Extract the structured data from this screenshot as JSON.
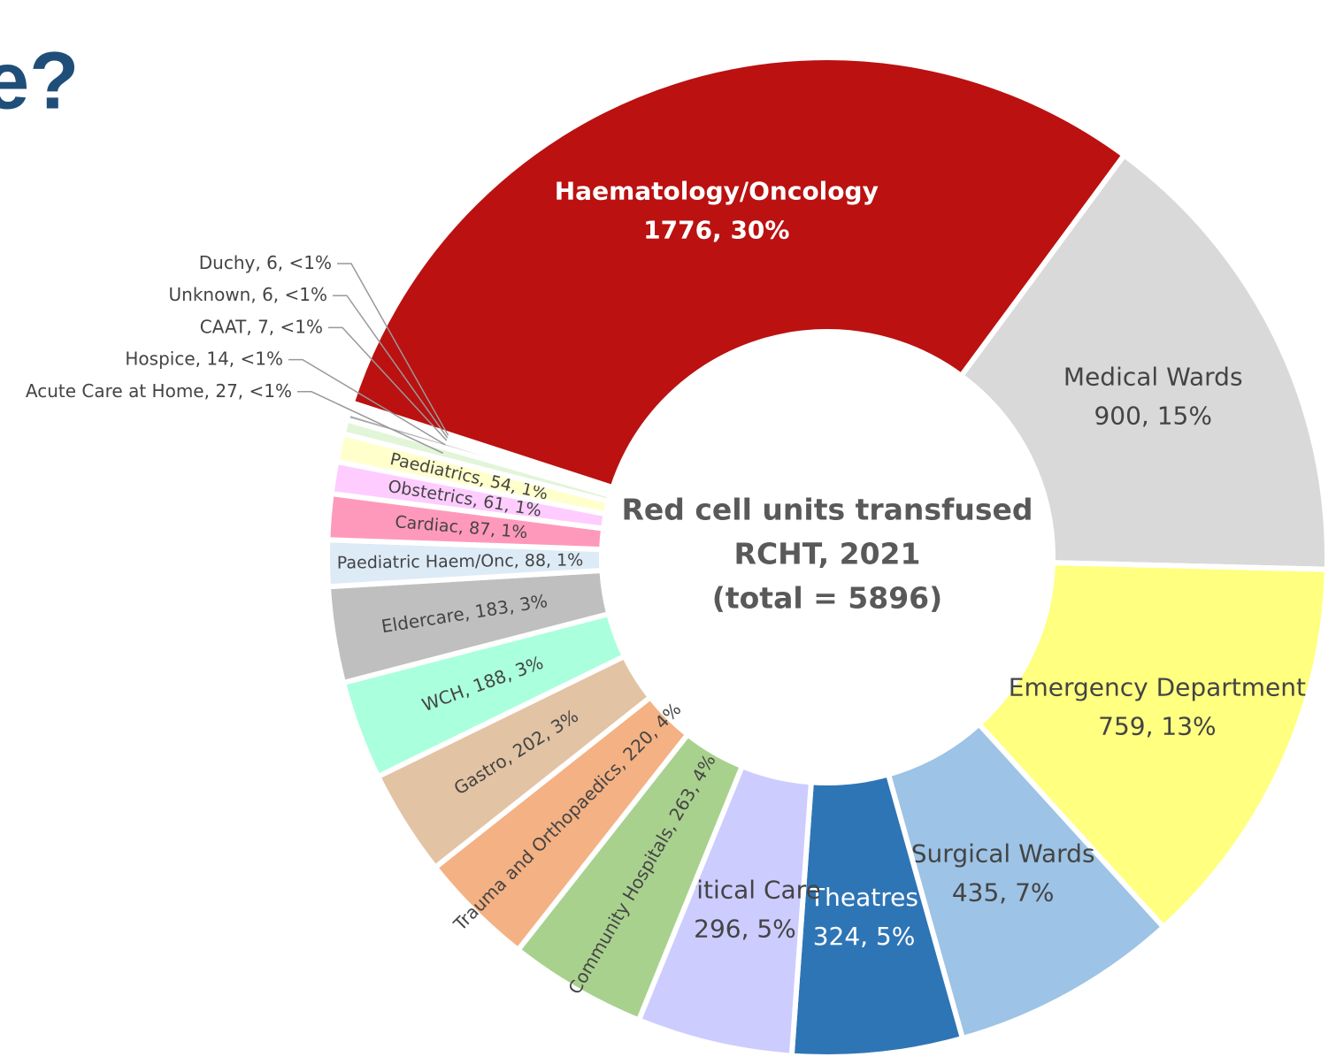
{
  "chart_data": {
    "type": "donut",
    "title": "e?",
    "annotations": [
      "Red cell units transfused",
      "RCHT, 2021",
      "(total = 5896)"
    ],
    "categories": [
      "Haematology/Oncology",
      "Medical Wards",
      "Emergency Department",
      "Surgical Wards",
      "Theatres",
      "Critical Care",
      "Community Hospitals",
      "Trauma and Orthopaedics",
      "Gastro",
      "WCH",
      "Eldercare",
      "Paediatric Haem/Onc",
      "Cardiac",
      "Obstetrics",
      "Paediatrics",
      "Acute Care at Home",
      "Hospice",
      "CAAT",
      "Unknown",
      "Duchy"
    ],
    "values": [
      1776,
      900,
      759,
      435,
      324,
      296,
      263,
      220,
      202,
      188,
      183,
      88,
      87,
      61,
      54,
      27,
      14,
      7,
      6,
      6
    ],
    "value_labels": [
      "1776, 30%",
      "900, 15%",
      "759, 13%",
      "435, 7%",
      "324, 5%",
      "296, 5%",
      ", 263, 4%",
      ", 220, 4%",
      ", 202, 3%",
      ", 188, 3%",
      ", 183, 3%",
      ", 88, 1%",
      ", 87, 1%",
      ", 61, 1%",
      ", 54, 1%",
      ", 27, <1%",
      ", 14, <1%",
      ", 7, <1%",
      ", 6, <1%",
      ", 6, <1%"
    ],
    "colors": [
      "#bb1111",
      "#d9d9d9",
      "#ffff80",
      "#9dc3e6",
      "#2e75b6",
      "#ccccff",
      "#a9d18e",
      "#f4b183",
      "#e2c3a4",
      "#aaffdd",
      "#bfbfbf",
      "#ddebf7",
      "#ff99bb",
      "#ffccff",
      "#ffffcc",
      "#e2f5d8",
      "#aaaaaa",
      "#d0d0d0",
      "#eeeeee",
      "#999999"
    ]
  }
}
